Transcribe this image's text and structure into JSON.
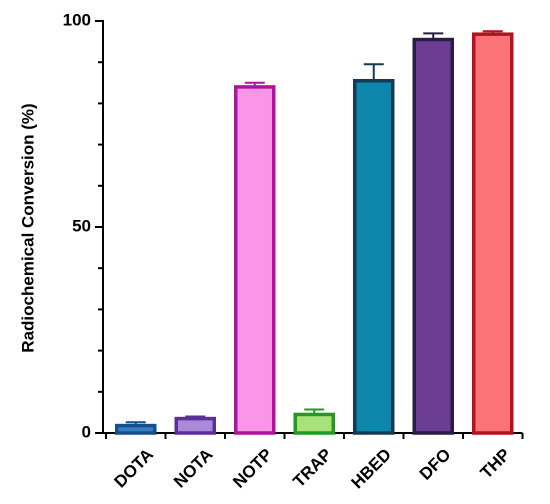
{
  "chart_data": {
    "type": "bar",
    "title": "",
    "xlabel": "",
    "ylabel": "Radiochemical Conversion (%)",
    "ylim": [
      0,
      100
    ],
    "yticks": [
      0,
      50,
      100
    ],
    "grid": false,
    "legend": "none",
    "categories": [
      "DOTA",
      "NOTA",
      "NOTP",
      "TRAP",
      "HBED",
      "DFO",
      "THP"
    ],
    "values": [
      1.8,
      3.5,
      84.0,
      4.5,
      85.5,
      95.5,
      96.8
    ],
    "error": [
      0.8,
      0.5,
      1.0,
      1.2,
      4.0,
      1.5,
      0.7
    ],
    "fill_colors": [
      "#3a7fc6",
      "#a98ad8",
      "#f996e8",
      "#a8e07a",
      "#0d86ab",
      "#6b3e93",
      "#fb7377"
    ],
    "edge_colors": [
      "#14508a",
      "#5a2f9c",
      "#b0149f",
      "#1f9a23",
      "#143a56",
      "#2a1c44",
      "#b5121f"
    ]
  }
}
